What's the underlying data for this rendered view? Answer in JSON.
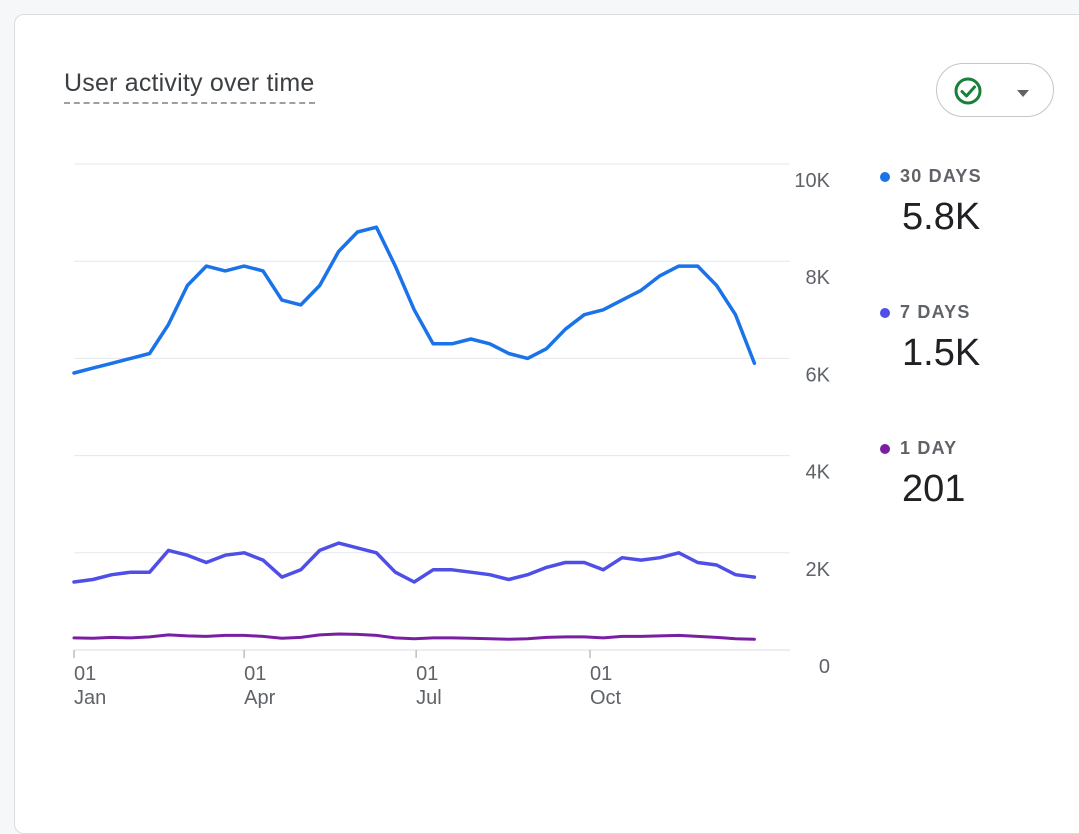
{
  "card": {
    "title": "User activity over time",
    "status_icon": "check-circle-icon",
    "dropdown_icon": "caret-down-icon",
    "status_color": "#188038"
  },
  "legend": [
    {
      "label": "30 DAYS",
      "value": "5.8K",
      "color": "#1a73e8"
    },
    {
      "label": "7 DAYS",
      "value": "1.5K",
      "color": "#4f4fe8"
    },
    {
      "label": "1 DAY",
      "value": "201",
      "color": "#7b1fa2"
    }
  ],
  "chart_data": {
    "type": "line",
    "y_axis_position": "right",
    "ylim": [
      0,
      10000
    ],
    "y_ticks": [
      {
        "value": 0,
        "label": "0"
      },
      {
        "value": 2000,
        "label": "2K"
      },
      {
        "value": 4000,
        "label": "4K"
      },
      {
        "value": 6000,
        "label": "6K"
      },
      {
        "value": 8000,
        "label": "8K"
      },
      {
        "value": 10000,
        "label": "10K"
      }
    ],
    "x_ticks": [
      {
        "date": "Jan 01",
        "day": "01",
        "month": "Jan"
      },
      {
        "date": "Apr 01",
        "day": "01",
        "month": "Apr"
      },
      {
        "date": "Jul 01",
        "day": "01",
        "month": "Jul"
      },
      {
        "date": "Oct 01",
        "day": "01",
        "month": "Oct"
      }
    ],
    "series": [
      {
        "name": "30 DAYS",
        "color": "#1a73e8",
        "points": [
          [
            "Jan 01",
            5700
          ],
          [
            "Jan 11",
            5800
          ],
          [
            "Jan 21",
            5900
          ],
          [
            "Jan 31",
            6000
          ],
          [
            "Feb 10",
            6100
          ],
          [
            "Feb 20",
            6700
          ],
          [
            "Mar 02",
            7500
          ],
          [
            "Mar 12",
            7900
          ],
          [
            "Mar 22",
            7800
          ],
          [
            "Apr 01",
            7900
          ],
          [
            "Apr 11",
            7800
          ],
          [
            "Apr 21",
            7200
          ],
          [
            "May 01",
            7100
          ],
          [
            "May 11",
            7500
          ],
          [
            "May 21",
            8200
          ],
          [
            "May 31",
            8600
          ],
          [
            "Jun 10",
            8700
          ],
          [
            "Jun 20",
            7900
          ],
          [
            "Jun 30",
            7000
          ],
          [
            "Jul 10",
            6300
          ],
          [
            "Jul 20",
            6300
          ],
          [
            "Jul 30",
            6400
          ],
          [
            "Aug 09",
            6300
          ],
          [
            "Aug 19",
            6100
          ],
          [
            "Aug 29",
            6000
          ],
          [
            "Sep 08",
            6200
          ],
          [
            "Sep 18",
            6600
          ],
          [
            "Sep 28",
            6900
          ],
          [
            "Oct 08",
            7000
          ],
          [
            "Oct 18",
            7200
          ],
          [
            "Oct 28",
            7400
          ],
          [
            "Nov 07",
            7700
          ],
          [
            "Nov 17",
            7900
          ],
          [
            "Nov 27",
            7900
          ],
          [
            "Dec 07",
            7500
          ],
          [
            "Dec 17",
            6900
          ],
          [
            "Dec 27",
            5900
          ]
        ]
      },
      {
        "name": "7 DAYS",
        "color": "#4f4fe8",
        "points": [
          [
            "Jan 01",
            1400
          ],
          [
            "Jan 11",
            1450
          ],
          [
            "Jan 21",
            1550
          ],
          [
            "Jan 31",
            1600
          ],
          [
            "Feb 10",
            1600
          ],
          [
            "Feb 20",
            2050
          ],
          [
            "Mar 02",
            1950
          ],
          [
            "Mar 12",
            1800
          ],
          [
            "Mar 22",
            1950
          ],
          [
            "Apr 01",
            2000
          ],
          [
            "Apr 11",
            1850
          ],
          [
            "Apr 21",
            1500
          ],
          [
            "May 01",
            1650
          ],
          [
            "May 11",
            2050
          ],
          [
            "May 21",
            2200
          ],
          [
            "May 31",
            2100
          ],
          [
            "Jun 10",
            2000
          ],
          [
            "Jun 20",
            1600
          ],
          [
            "Jun 30",
            1400
          ],
          [
            "Jul 10",
            1650
          ],
          [
            "Jul 20",
            1650
          ],
          [
            "Jul 30",
            1600
          ],
          [
            "Aug 09",
            1550
          ],
          [
            "Aug 19",
            1450
          ],
          [
            "Aug 29",
            1550
          ],
          [
            "Sep 08",
            1700
          ],
          [
            "Sep 18",
            1800
          ],
          [
            "Sep 28",
            1800
          ],
          [
            "Oct 08",
            1650
          ],
          [
            "Oct 18",
            1900
          ],
          [
            "Oct 28",
            1850
          ],
          [
            "Nov 07",
            1900
          ],
          [
            "Nov 17",
            2000
          ],
          [
            "Nov 27",
            1800
          ],
          [
            "Dec 07",
            1750
          ],
          [
            "Dec 17",
            1550
          ],
          [
            "Dec 27",
            1500
          ]
        ]
      },
      {
        "name": "1 DAY",
        "color": "#7b1fa2",
        "points": [
          [
            "Jan 01",
            250
          ],
          [
            "Jan 11",
            240
          ],
          [
            "Jan 21",
            260
          ],
          [
            "Jan 31",
            250
          ],
          [
            "Feb 10",
            270
          ],
          [
            "Feb 20",
            310
          ],
          [
            "Mar 02",
            290
          ],
          [
            "Mar 12",
            280
          ],
          [
            "Mar 22",
            300
          ],
          [
            "Apr 01",
            300
          ],
          [
            "Apr 11",
            280
          ],
          [
            "Apr 21",
            240
          ],
          [
            "May 01",
            260
          ],
          [
            "May 11",
            310
          ],
          [
            "May 21",
            330
          ],
          [
            "May 31",
            320
          ],
          [
            "Jun 10",
            300
          ],
          [
            "Jun 20",
            250
          ],
          [
            "Jun 30",
            230
          ],
          [
            "Jul 10",
            250
          ],
          [
            "Jul 20",
            250
          ],
          [
            "Jul 30",
            240
          ],
          [
            "Aug 09",
            230
          ],
          [
            "Aug 19",
            220
          ],
          [
            "Aug 29",
            230
          ],
          [
            "Sep 08",
            260
          ],
          [
            "Sep 18",
            270
          ],
          [
            "Sep 28",
            270
          ],
          [
            "Oct 08",
            250
          ],
          [
            "Oct 18",
            280
          ],
          [
            "Oct 28",
            280
          ],
          [
            "Nov 07",
            290
          ],
          [
            "Nov 17",
            300
          ],
          [
            "Nov 27",
            280
          ],
          [
            "Dec 07",
            260
          ],
          [
            "Dec 17",
            230
          ],
          [
            "Dec 27",
            220
          ]
        ]
      }
    ]
  }
}
